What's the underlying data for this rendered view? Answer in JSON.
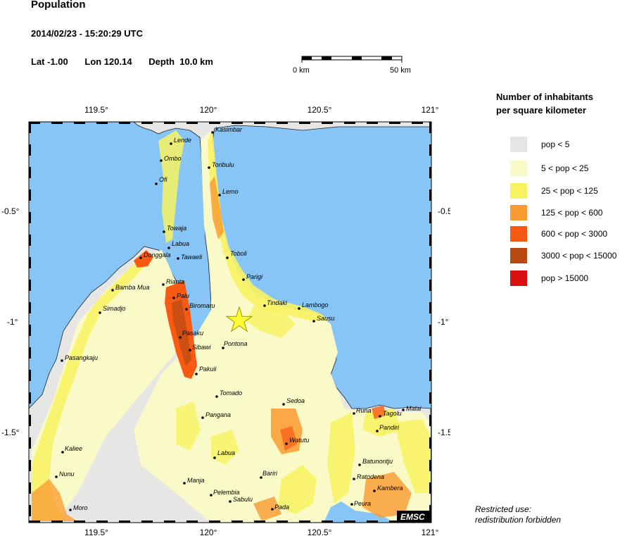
{
  "header": {
    "title": "Population",
    "datetime": "2014/02/23 - 15:20:29 UTC",
    "lat": "Lat -1.00",
    "lon": "Lon 120.14",
    "depth": "Depth  10.0 km"
  },
  "scale": {
    "start": "0 km",
    "end": "50 km"
  },
  "map": {
    "lon_ticks": [
      "119.5°",
      "120°",
      "120.5°",
      "121°"
    ],
    "lat_ticks": [
      "-0.5°",
      "-1°",
      "-1.5°"
    ],
    "epicenter": {
      "lat": -1.0,
      "lon": 120.14
    },
    "watermark": "EMSC",
    "colors": {
      "sea": "#86c5f5",
      "land": "#e6e6e4",
      "epicenter": "#ffff33"
    },
    "places": [
      "Kasimbar",
      "Lende",
      "Toribulu",
      "Ombo",
      "Ofi",
      "Lemo",
      "Towaja",
      "Labua",
      "Donggala",
      "Tawaeli",
      "Toboli",
      "Parigi",
      "Bamba Mua",
      "Rianta",
      "Palu",
      "Biromaru",
      "Tindaki",
      "Lambogo",
      "Simadjo",
      "Sausu",
      "Pasaku",
      "Sibawi",
      "Pontona",
      "Pasangkaju",
      "Pakuli",
      "Tomado",
      "Sedoa",
      "Runa",
      "Tagolu",
      "Malai",
      "Pangana",
      "Pandiri",
      "Kaliee",
      "Watutu",
      "Labua",
      "Batunontju",
      "Nunu",
      "Bariri",
      "Ratodena",
      "Manja",
      "Kambera",
      "Pelembia",
      "Sabulu",
      "Peura",
      "Moro",
      "Pada"
    ]
  },
  "legend": {
    "title_line1": "Number of inhabitants",
    "title_line2": "per square kilometer",
    "items": [
      {
        "label": "pop < 5",
        "color": "#e6e6e4"
      },
      {
        "label": "5 < pop < 25",
        "color": "#fafac8"
      },
      {
        "label": "25 < pop < 125",
        "color": "#f8f260"
      },
      {
        "label": "125 < pop < 600",
        "color": "#fa9a30"
      },
      {
        "label": "600 < pop < 3000",
        "color": "#f85a14"
      },
      {
        "label": "3000 < pop < 15000",
        "color": "#b84812"
      },
      {
        "label": "pop > 15000",
        "color": "#d81010"
      }
    ]
  },
  "notice": {
    "line1": "Restricted use:",
    "line2": "redistribution forbidden"
  }
}
